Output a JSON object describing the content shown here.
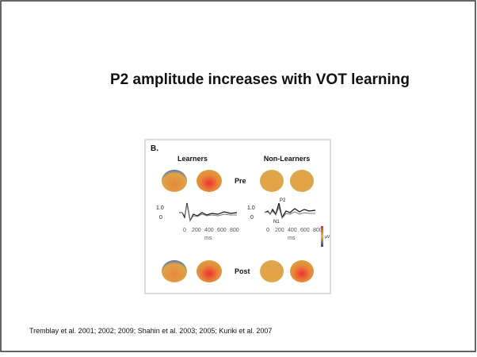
{
  "title": "P2 amplitude increases with VOT learning",
  "figure": {
    "panel": "B.",
    "groups": [
      "Learners",
      "Non-Learners"
    ],
    "rows": [
      "Pre",
      "Post"
    ],
    "scale": [
      "1.0",
      "0"
    ],
    "unit_v": "µV",
    "ticks": [
      "0",
      "200",
      "400",
      "600",
      "800"
    ],
    "xlabel": "ms",
    "peaks": [
      "P2",
      "N1"
    ]
  },
  "citation": "Tremblay et al. 2001; 2002; 2009; Shahin et al. 2003; 2005; Kuriki et al. 2007"
}
